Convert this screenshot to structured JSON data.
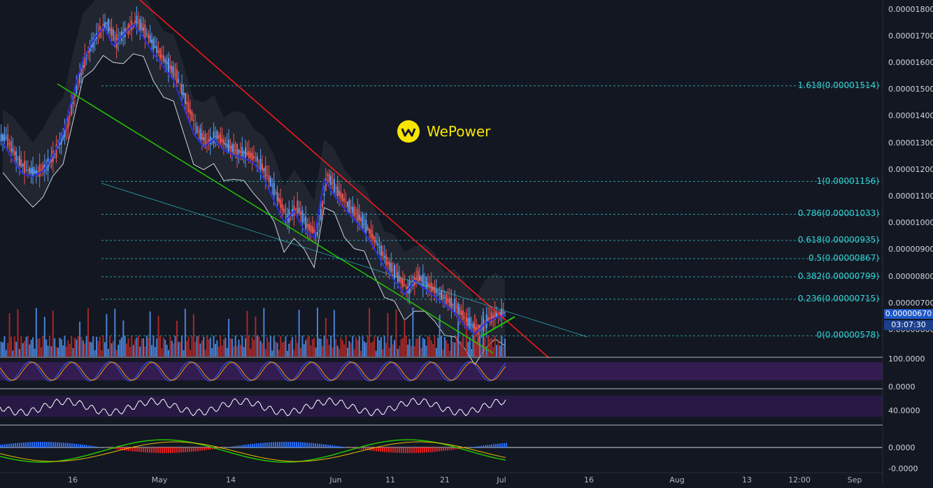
{
  "watermark": {
    "brand": "WePower",
    "logo_icon": "wepower-logo-icon",
    "brand_color": "#f7e600"
  },
  "price_axis": {
    "labels": [
      "0.00001800",
      "0.00001700",
      "0.00001600",
      "0.00001500",
      "0.00001400",
      "0.00001300",
      "0.00001200",
      "0.00001100",
      "0.00001000",
      "0.00000900",
      "0.00000800",
      "0.00000700",
      "0.00000600"
    ],
    "values": [
      1.8e-05,
      1.7e-05,
      1.6e-05,
      1.5e-05,
      1.4e-05,
      1.3e-05,
      1.2e-05,
      1.1e-05,
      1e-05,
      9e-06,
      8e-06,
      7e-06,
      6e-06
    ]
  },
  "current_price": {
    "label": "0.00000670",
    "value": 6.7e-06,
    "countdown": "03:07:30"
  },
  "fib_levels": [
    {
      "label": "1.618(0.00001514)",
      "value": 1.514e-05
    },
    {
      "label": "1(0.00001156)",
      "value": 1.156e-05
    },
    {
      "label": "0.786(0.00001033)",
      "value": 1.033e-05
    },
    {
      "label": "0.618(0.00000935)",
      "value": 9.35e-06
    },
    {
      "label": "0.5(0.00000867)",
      "value": 8.67e-06
    },
    {
      "label": "0.382(0.00000799)",
      "value": 7.99e-06
    },
    {
      "label": "0.236(0.00000715)",
      "value": 7.15e-06
    },
    {
      "label": "0(0.00000578)",
      "value": 5.78e-06
    }
  ],
  "date_axis": [
    "16",
    "May",
    "14",
    "Jun",
    "11",
    "21",
    "Jul",
    "16",
    "Aug",
    "13",
    "12:00",
    "Sep"
  ],
  "stoch_axis": [
    "100.0000",
    "0.0000"
  ],
  "rsi_axis": [
    "40.0000"
  ],
  "macd_axis": [
    "0.0000",
    "-0.0000"
  ],
  "colors": {
    "up": "#5b9cf6",
    "down": "#ef5350",
    "upper_trend": "#ff1a1a",
    "lower_trend": "#22c400",
    "ma": "#2a2fd9",
    "fib": "#33d6d6"
  },
  "chart_data": {
    "type": "candlestick",
    "title": "",
    "series": [
      {
        "name": "",
        "values": [
          1.32e-05,
          1.25e-05,
          1.2e-05,
          1.19e-05,
          1.21e-05,
          1.27e-05,
          1.35e-05,
          1.5e-05,
          1.63e-05,
          1.7e-05,
          1.75e-05,
          1.68e-05,
          1.72e-05,
          1.76e-05,
          1.71e-05,
          1.65e-05,
          1.6e-05,
          1.55e-05,
          1.45e-05,
          1.35e-05,
          1.3e-05,
          1.33e-05,
          1.29e-05,
          1.27e-05,
          1.26e-05,
          1.24e-05,
          1.18e-05,
          1.1e-05,
          1.02e-05,
          1.06e-05,
          9.9e-06,
          9.6e-06,
          1.18e-05,
          1.12e-05,
          1.07e-05,
          1.03e-05,
          9.8e-06,
          9.2e-06,
          8.5e-06,
          8e-06,
          7.5e-06,
          8e-06,
          7.7e-06,
          7.4e-06,
          7.1e-06,
          6.8e-06,
          6.3e-06,
          6e-06,
          6.4e-06,
          6.6e-06,
          6.7e-06
        ]
      }
    ],
    "ylim": [
      5.5e-06,
      1.85e-05
    ],
    "annotations": [
      "falling wedge",
      "fibonacci retracement"
    ]
  }
}
